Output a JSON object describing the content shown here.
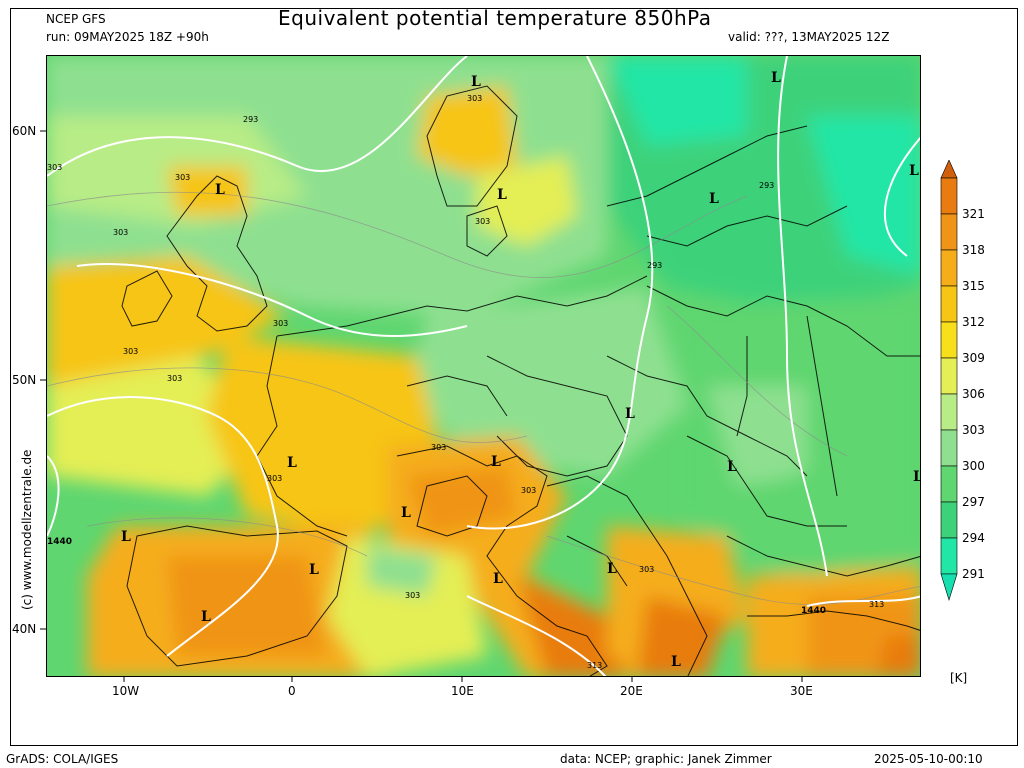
{
  "header": {
    "source": "NCEP GFS",
    "run": "run: 09MAY2025 18Z +90h",
    "title": "Equivalent potential temperature 850hPa",
    "valid": "valid: ???, 13MAY2025 12Z"
  },
  "axes": {
    "lat_labels": [
      "60N",
      "50N",
      "40N"
    ],
    "lon_labels": [
      "10W",
      "0",
      "10E",
      "20E",
      "30E"
    ]
  },
  "colorbar": {
    "unit": "[K]",
    "levels": [
      "321",
      "318",
      "315",
      "312",
      "309",
      "306",
      "303",
      "300",
      "297",
      "294",
      "291"
    ],
    "colors": [
      "#e87c10",
      "#f09418",
      "#f5ad1a",
      "#f7c515",
      "#f8df1c",
      "#e4ee55",
      "#b8ec86",
      "#8ee090",
      "#5fd670",
      "#3cd27a",
      "#22e6a6"
    ]
  },
  "map": {
    "contour_labels": [
      "293",
      "303",
      "303",
      "303",
      "303",
      "303",
      "303",
      "303",
      "303",
      "303",
      "303",
      "303",
      "303",
      "303",
      "293",
      "293",
      "313",
      "313",
      "1440",
      "1440"
    ],
    "pressure_markers": [
      "L",
      "L",
      "L",
      "L",
      "L",
      "L",
      "L",
      "L",
      "L",
      "L",
      "L",
      "L",
      "L",
      "L",
      "L",
      "L",
      "L",
      "L"
    ]
  },
  "watermark": "(c)  www.modellzentrale.de",
  "footer": {
    "left": "GrADS: COLA/IGES",
    "center": "data: NCEP; graphic: Janek Zimmer",
    "right": "2025-05-10-00:10"
  }
}
